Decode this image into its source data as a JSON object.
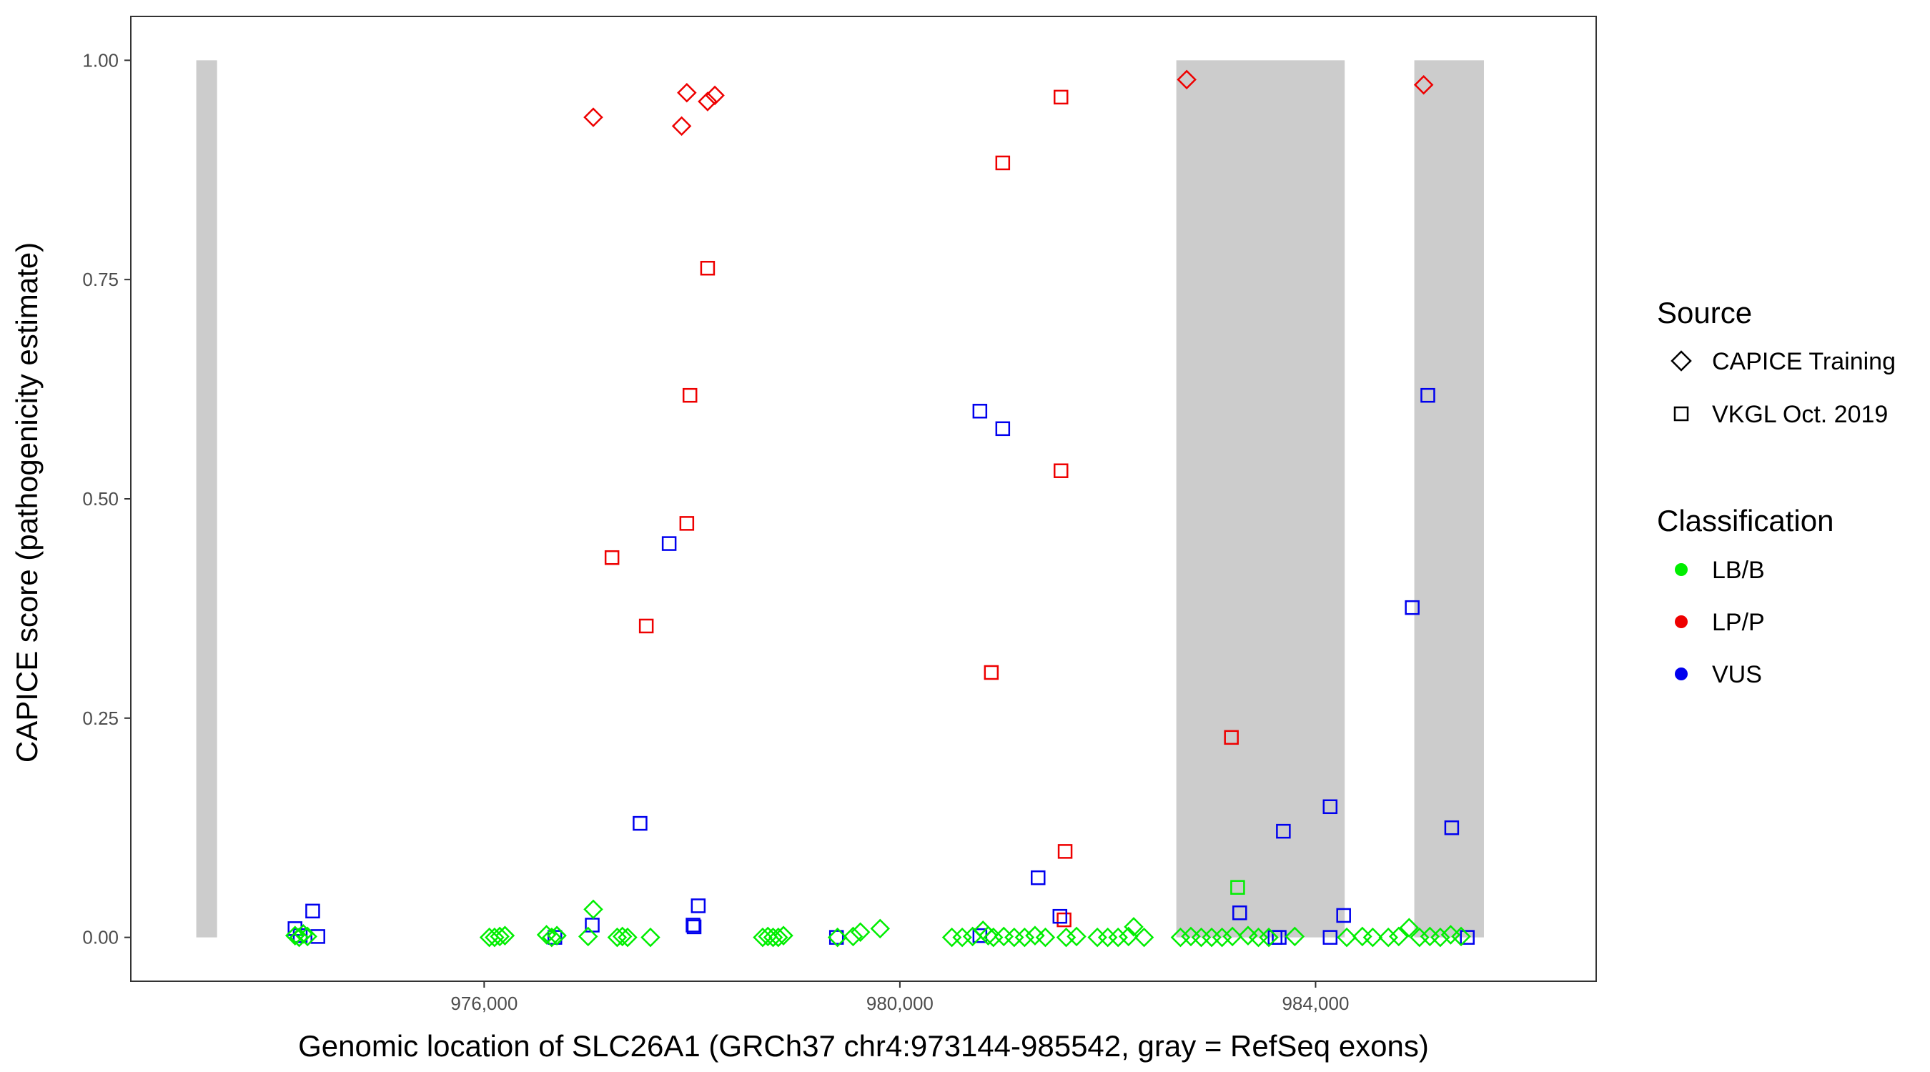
{
  "chart_data": {
    "type": "scatter",
    "title": "",
    "xlabel": "Genomic location of SLC26A1 (GRCh37 chr4:973144-985542, gray = RefSeq exons)",
    "ylabel": "CAPICE score (pathogenicity estimate)",
    "xlim": [
      972600,
      986700
    ],
    "ylim": [
      -0.05,
      1.05
    ],
    "x_ticks": [
      976000,
      980000,
      984000
    ],
    "x_tick_labels": [
      "976,000",
      "980,000",
      "984,000"
    ],
    "y_ticks": [
      0,
      0.25,
      0.5,
      0.75,
      1
    ],
    "y_tick_labels": [
      "0.00",
      "0.25",
      "0.50",
      "0.75",
      "1.00"
    ],
    "grid": false,
    "exons": [
      [
        973230,
        973430
      ],
      [
        982660,
        984280
      ],
      [
        984950,
        985620
      ]
    ],
    "exon_color": "#cccccc",
    "legend": {
      "placement": "right",
      "source": {
        "title": "Source",
        "entries": [
          {
            "label": "CAPICE Training",
            "shape": "diamond"
          },
          {
            "label": "VKGL Oct. 2019",
            "shape": "square"
          }
        ]
      },
      "classification": {
        "title": "Classification",
        "entries": [
          {
            "label": "LB/B",
            "color": "#00ee00"
          },
          {
            "label": "LP/P",
            "color": "#ee0000"
          },
          {
            "label": "VUS",
            "color": "#0000ee"
          }
        ]
      }
    },
    "series": [
      {
        "source": "CAPICE Training",
        "classification": "LP/P",
        "shape": "diamond",
        "color": "#ee0000",
        "x": [
          977050,
          977900,
          977950,
          978150,
          978220,
          982760,
          985040
        ],
        "y": [
          0.935,
          0.925,
          0.963,
          0.953,
          0.96,
          0.978,
          0.972
        ]
      },
      {
        "source": "VKGL Oct. 2019",
        "classification": "LP/P",
        "shape": "square",
        "color": "#ee0000",
        "x": [
          977230,
          977560,
          977950,
          977980,
          978150,
          980880,
          980990,
          981550,
          981550,
          981590,
          981580,
          983190
        ],
        "y": [
          0.433,
          0.355,
          0.472,
          0.618,
          0.763,
          0.302,
          0.883,
          0.958,
          0.532,
          0.098,
          0.02,
          0.228
        ]
      },
      {
        "source": "VKGL Oct. 2019",
        "classification": "VUS",
        "shape": "square",
        "color": "#0000ee",
        "x": [
          974180,
          974230,
          974350,
          974400,
          976680,
          977040,
          977500,
          977780,
          978010,
          978020,
          978060,
          979390,
          980770,
          980770,
          980990,
          981330,
          981540,
          983270,
          983610,
          983650,
          983690,
          984140,
          984140,
          984270,
          984930,
          985080,
          985310,
          985460
        ],
        "y": [
          0.01,
          0.002,
          0.03,
          0.001,
          0,
          0.014,
          0.13,
          0.449,
          0.014,
          0.012,
          0.036,
          0,
          0.6,
          0.002,
          0.58,
          0.068,
          0.024,
          0.028,
          0,
          0,
          0.121,
          0.149,
          0,
          0.025,
          0.376,
          0.618,
          0.125,
          0
        ]
      },
      {
        "source": "VKGL Oct. 2019",
        "classification": "LB/B",
        "shape": "square",
        "color": "#00ee00",
        "x": [
          983250
        ],
        "y": [
          0.057
        ]
      },
      {
        "source": "CAPICE Training",
        "classification": "LB/B",
        "shape": "diamond",
        "color": "#00ee00",
        "x": [
          974180,
          974220,
          974260,
          974300,
          976050,
          976100,
          976150,
          976200,
          976600,
          976650,
          976700,
          977000,
          977050,
          977280,
          977330,
          977380,
          977600,
          978680,
          978730,
          978780,
          978830,
          978880,
          979400,
          979550,
          979620,
          979810,
          980500,
          980600,
          980700,
          980800,
          980850,
          980900,
          981000,
          981100,
          981200,
          981300,
          981400,
          981600,
          981700,
          981900,
          982000,
          982100,
          982200,
          982250,
          982350,
          982700,
          982800,
          982900,
          983000,
          983100,
          983200,
          983350,
          983450,
          983550,
          983800,
          984300,
          984450,
          984550,
          984700,
          984800,
          984900,
          985000,
          985100,
          985200,
          985300,
          985400
        ],
        "y": [
          0.002,
          0,
          0.004,
          0.001,
          0,
          0,
          0.001,
          0.002,
          0.003,
          0,
          0.002,
          0.001,
          0.032,
          0,
          0.001,
          0,
          0,
          0,
          0.001,
          0,
          0,
          0.002,
          0,
          0.001,
          0.006,
          0.01,
          0,
          0,
          0.001,
          0.008,
          0.002,
          0,
          0.001,
          0,
          0,
          0.002,
          0,
          0,
          0.001,
          0,
          0,
          0,
          0.001,
          0.012,
          0,
          0,
          0.001,
          0,
          0,
          0,
          0.001,
          0.002,
          0,
          0,
          0.001,
          0,
          0.001,
          0,
          0,
          0.001,
          0.011,
          0,
          0.001,
          0,
          0.003,
          0.001
        ]
      }
    ]
  }
}
